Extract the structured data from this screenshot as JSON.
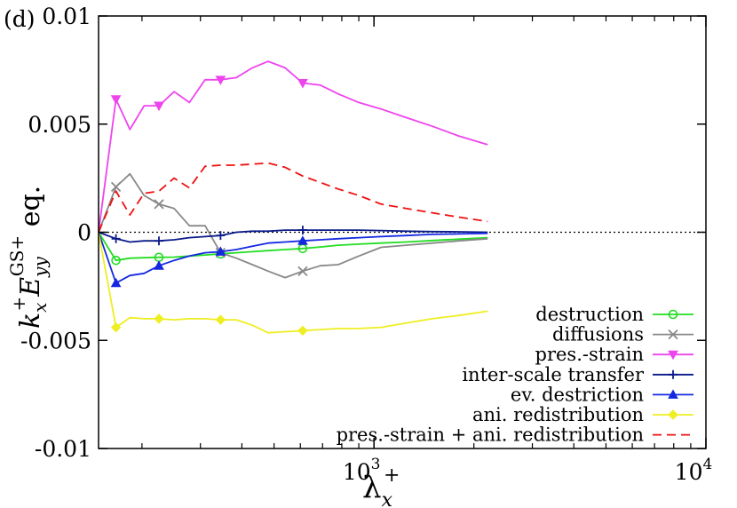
{
  "panel_label": "(d)",
  "chart_data": {
    "type": "line",
    "xscale": "log",
    "xlim": [
      148,
      10000
    ],
    "ylim": [
      -0.01,
      0.01
    ],
    "grid": false,
    "legend_position": "bottom-right",
    "xlabel_parts": {
      "base": "λ",
      "sub": "x",
      "sup": "+"
    },
    "ylabel_parts": {
      "k": "k",
      "k_sub": "x",
      "k_sup": "+",
      "E": "E",
      "E_sub": "yy",
      "E_sup": "GS+",
      "suffix": " eq."
    },
    "x_ticks": [
      {
        "value": 1000,
        "base": "10",
        "exp": "3"
      },
      {
        "value": 10000,
        "base": "10",
        "exp": "4"
      }
    ],
    "y_ticks": [
      {
        "value": 0.01,
        "label": "0.01"
      },
      {
        "value": 0.005,
        "label": "0.005"
      },
      {
        "value": 0,
        "label": "0"
      },
      {
        "value": -0.005,
        "label": "-0.005"
      },
      {
        "value": -0.01,
        "label": "-0.01"
      }
    ],
    "zero_line": {
      "y": 0,
      "style": "dotted",
      "color": "#000000"
    },
    "x": [
      148,
      167,
      184,
      203,
      225,
      250,
      278,
      310,
      345,
      385,
      430,
      480,
      540,
      610,
      690,
      780,
      900,
      1050,
      1250,
      1500,
      1800,
      2200
    ],
    "series": [
      {
        "name": "destruction",
        "color": "#22dd22",
        "dash": "solid",
        "marker": "circle",
        "values": [
          0,
          -0.0013,
          -0.0012,
          -0.00118,
          -0.00116,
          -0.00115,
          -0.0011,
          -0.00105,
          -0.001,
          -0.00095,
          -0.0009,
          -0.00085,
          -0.0008,
          -0.00075,
          -0.00068,
          -0.0006,
          -0.00055,
          -0.0005,
          -0.00045,
          -0.00038,
          -0.00032,
          -0.00025
        ]
      },
      {
        "name": "diffusions",
        "color": "#888888",
        "dash": "solid",
        "marker": "x",
        "values": [
          0,
          0.0021,
          0.0027,
          0.0017,
          0.0013,
          0.0011,
          0.0003,
          0.0003,
          -0.00095,
          -0.0012,
          -0.0015,
          -0.0018,
          -0.0021,
          -0.0018,
          -0.00155,
          -0.0015,
          -0.0011,
          -0.0007,
          -0.0006,
          -0.0005,
          -0.0004,
          -0.0003
        ]
      },
      {
        "name": "pres.-strain",
        "color": "#ee44ee",
        "dash": "solid",
        "marker": "triangle-down",
        "values": [
          0,
          0.00615,
          0.00475,
          0.00585,
          0.00585,
          0.0065,
          0.006,
          0.00705,
          0.00705,
          0.00715,
          0.0076,
          0.0079,
          0.0076,
          0.0069,
          0.0068,
          0.0064,
          0.006,
          0.0057,
          0.0053,
          0.0049,
          0.00445,
          0.00405
        ]
      },
      {
        "name": "inter-scale transfer",
        "color": "#0a1a8a",
        "dash": "solid",
        "marker": "plus",
        "values": [
          0,
          -0.0003,
          -0.00045,
          -0.0004,
          -0.0004,
          -0.00035,
          -0.00025,
          -0.0002,
          -0.00015,
          0.0,
          5e-05,
          5e-05,
          0.0001,
          0.0001,
          0.0001,
          0.0001,
          0.0001,
          8e-05,
          5e-05,
          3e-05,
          2e-05,
          0.0
        ]
      },
      {
        "name": "ev. destriction",
        "color": "#1428e0",
        "dash": "solid",
        "marker": "triangle-up",
        "values": [
          0,
          -0.00235,
          -0.002,
          -0.0019,
          -0.00155,
          -0.0013,
          -0.0011,
          -0.00095,
          -0.0009,
          -0.0008,
          -0.00065,
          -0.0005,
          -0.00045,
          -0.0004,
          -0.00035,
          -0.0003,
          -0.00025,
          -0.0002,
          -0.00015,
          -0.0001,
          -8e-05,
          -5e-05
        ]
      },
      {
        "name": "ani. redistribution",
        "color": "#eeee22",
        "dash": "solid",
        "marker": "diamond",
        "values": [
          0,
          -0.0044,
          -0.00395,
          -0.004,
          -0.004,
          -0.00405,
          -0.004,
          -0.004,
          -0.00405,
          -0.00405,
          -0.0043,
          -0.00465,
          -0.0046,
          -0.00455,
          -0.0045,
          -0.00445,
          -0.00445,
          -0.0044,
          -0.0042,
          -0.004,
          -0.00385,
          -0.00365
        ]
      },
      {
        "name": "pres.-strain + ani. redistribution",
        "color": "#ee1111",
        "dash": "dashed",
        "marker": "none",
        "values": [
          0,
          0.0019,
          0.0008,
          0.0018,
          0.0019,
          0.0025,
          0.00205,
          0.00305,
          0.0031,
          0.0031,
          0.00315,
          0.0032,
          0.003,
          0.0026,
          0.0023,
          0.002,
          0.0017,
          0.0013,
          0.0011,
          0.0009,
          0.0007,
          0.0005
        ]
      }
    ],
    "marker_indices": [
      1,
      4,
      8,
      13
    ]
  }
}
